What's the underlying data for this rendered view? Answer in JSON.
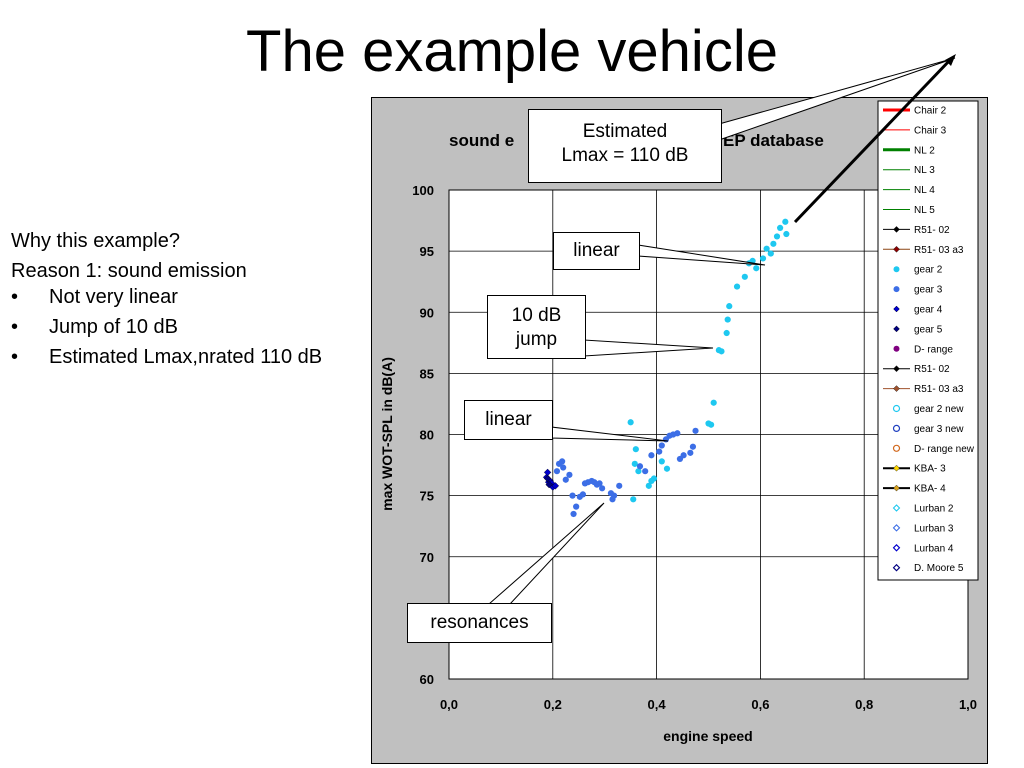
{
  "slide": {
    "title": "The example vehicle",
    "left_heading": "Why this example?",
    "left_subheading": "Reason 1: sound emission",
    "bullets": [
      "Not very linear",
      "Jump of 10 dB",
      "Estimated Lmax,nrated 110 dB"
    ]
  },
  "callouts": {
    "estimated_line1": "Estimated",
    "estimated_line2": "Lmax = 110 dB",
    "linear_upper": "linear",
    "jump_line1": "10 dB",
    "jump_line2": "jump",
    "linear_lower": "linear",
    "resonances": "resonances"
  },
  "chart_data": {
    "type": "scatter",
    "title_left": "sound e",
    "title_right": "EP database",
    "xlabel": "engine speed",
    "ylabel": "max WOT-SPL in dB(A)",
    "xlim": [
      0,
      1.0
    ],
    "ylim": [
      60,
      100
    ],
    "xticks": [
      "0,0",
      "0,2",
      "0,4",
      "0,6",
      "0,8",
      "1,0"
    ],
    "yticks": [
      "60",
      "70",
      "75",
      "80",
      "85",
      "90",
      "95",
      "100"
    ],
    "grid": true,
    "legend_position": "top-right",
    "legend": [
      {
        "name": "Chair 2",
        "kind": "line",
        "color": "#ff0000",
        "width": 3
      },
      {
        "name": "Chair 3",
        "kind": "line",
        "color": "#ff0000",
        "width": 1
      },
      {
        "name": "NL 2",
        "kind": "line",
        "color": "#008000",
        "width": 3
      },
      {
        "name": "NL 3",
        "kind": "line",
        "color": "#008000",
        "width": 1
      },
      {
        "name": "NL 4",
        "kind": "line",
        "color": "#008000",
        "width": 1
      },
      {
        "name": "NL 5",
        "kind": "line",
        "color": "#008000",
        "width": 1
      },
      {
        "name": "R51- 02",
        "kind": "linemarker",
        "color": "#000000",
        "marker": "diamond-filled",
        "mcolor": "#000000"
      },
      {
        "name": "R51- 03 a3",
        "kind": "linemarker",
        "color": "#8b4513",
        "marker": "diamond-filled",
        "mcolor": "#8b0000"
      },
      {
        "name": "gear 2",
        "kind": "marker",
        "marker": "circle-filled",
        "mcolor": "#1ec8f0"
      },
      {
        "name": "gear 3",
        "kind": "marker",
        "marker": "circle-filled",
        "mcolor": "#3c6ee6"
      },
      {
        "name": "gear 4",
        "kind": "marker",
        "marker": "diamond-filled",
        "mcolor": "#0000cd"
      },
      {
        "name": "gear 5",
        "kind": "marker",
        "marker": "diamond-filled",
        "mcolor": "#000080"
      },
      {
        "name": "D- range",
        "kind": "marker",
        "marker": "circle-filled",
        "mcolor": "#800080"
      },
      {
        "name": "R51- 02",
        "kind": "linemarker",
        "color": "#000000",
        "marker": "diamond-filled",
        "mcolor": "#000000"
      },
      {
        "name": "R51- 03 a3",
        "kind": "linemarker",
        "color": "#a0522d",
        "marker": "diamond-filled",
        "mcolor": "#a0522d"
      },
      {
        "name": "gear 2 new",
        "kind": "marker",
        "marker": "circle-open",
        "mcolor": "#1ec8f0"
      },
      {
        "name": "gear 3 new",
        "kind": "marker",
        "marker": "circle-open",
        "mcolor": "#2040c0"
      },
      {
        "name": "D- range new",
        "kind": "marker",
        "marker": "circle-open",
        "mcolor": "#d2691e"
      },
      {
        "name": "KBA- 3",
        "kind": "linemarker",
        "color": "#000000",
        "width": 2,
        "marker": "diamond-filled",
        "mcolor": "#ffd700"
      },
      {
        "name": "KBA- 4",
        "kind": "linemarker",
        "color": "#000000",
        "width": 2,
        "marker": "diamond-filled",
        "mcolor": "#daa520"
      },
      {
        "name": "Lurban 2",
        "kind": "marker",
        "marker": "diamond-open",
        "mcolor": "#1ec8f0"
      },
      {
        "name": "Lurban 3",
        "kind": "marker",
        "marker": "diamond-open",
        "mcolor": "#3c6ee6"
      },
      {
        "name": "Lurban 4",
        "kind": "marker",
        "marker": "diamond-open",
        "mcolor": "#0000cd"
      },
      {
        "name": "D. Moore 5",
        "kind": "marker",
        "marker": "diamond-open",
        "mcolor": "#000080"
      }
    ],
    "series": [
      {
        "name": "gear 2",
        "color": "#1ec8f0",
        "marker": "circle-filled",
        "points": [
          [
            0.35,
            81.0
          ],
          [
            0.355,
            74.7
          ],
          [
            0.358,
            77.6
          ],
          [
            0.36,
            78.8
          ],
          [
            0.365,
            77.0
          ],
          [
            0.385,
            75.8
          ],
          [
            0.39,
            76.2
          ],
          [
            0.395,
            76.4
          ],
          [
            0.41,
            77.8
          ],
          [
            0.42,
            77.2
          ],
          [
            0.5,
            80.9
          ],
          [
            0.505,
            80.8
          ],
          [
            0.51,
            82.6
          ],
          [
            0.52,
            86.9
          ],
          [
            0.525,
            86.8
          ],
          [
            0.535,
            88.3
          ],
          [
            0.537,
            89.4
          ],
          [
            0.54,
            90.5
          ],
          [
            0.555,
            92.1
          ],
          [
            0.57,
            92.9
          ],
          [
            0.578,
            94.0
          ],
          [
            0.585,
            94.2
          ],
          [
            0.592,
            93.6
          ],
          [
            0.605,
            94.4
          ],
          [
            0.612,
            95.2
          ],
          [
            0.62,
            94.8
          ],
          [
            0.625,
            95.6
          ],
          [
            0.632,
            96.2
          ],
          [
            0.638,
            96.9
          ],
          [
            0.648,
            97.4
          ],
          [
            0.65,
            96.4
          ]
        ]
      },
      {
        "name": "gear 3",
        "color": "#3c6ee6",
        "marker": "circle-filled",
        "points": [
          [
            0.208,
            77.0
          ],
          [
            0.212,
            77.6
          ],
          [
            0.218,
            77.8
          ],
          [
            0.22,
            77.3
          ],
          [
            0.225,
            76.3
          ],
          [
            0.232,
            76.7
          ],
          [
            0.238,
            75.0
          ],
          [
            0.24,
            73.5
          ],
          [
            0.245,
            74.1
          ],
          [
            0.252,
            74.9
          ],
          [
            0.258,
            75.1
          ],
          [
            0.262,
            76.0
          ],
          [
            0.268,
            76.1
          ],
          [
            0.275,
            76.2
          ],
          [
            0.28,
            76.1
          ],
          [
            0.285,
            75.9
          ],
          [
            0.29,
            76.0
          ],
          [
            0.295,
            75.6
          ],
          [
            0.312,
            75.2
          ],
          [
            0.315,
            74.7
          ],
          [
            0.318,
            75.0
          ],
          [
            0.328,
            75.8
          ],
          [
            0.368,
            77.4
          ],
          [
            0.378,
            77.0
          ],
          [
            0.39,
            78.3
          ],
          [
            0.405,
            78.6
          ],
          [
            0.41,
            79.1
          ],
          [
            0.418,
            79.6
          ],
          [
            0.425,
            79.9
          ],
          [
            0.432,
            80.0
          ],
          [
            0.44,
            80.1
          ],
          [
            0.445,
            78.0
          ],
          [
            0.452,
            78.3
          ],
          [
            0.465,
            78.5
          ],
          [
            0.47,
            79.0
          ],
          [
            0.475,
            80.3
          ]
        ]
      },
      {
        "name": "gear 4",
        "color": "#0000cd",
        "marker": "diamond-filled",
        "points": [
          [
            0.188,
            76.5
          ],
          [
            0.19,
            76.9
          ],
          [
            0.192,
            76.1
          ],
          [
            0.195,
            76.2
          ],
          [
            0.198,
            76.0
          ],
          [
            0.2,
            75.7
          ],
          [
            0.205,
            75.8
          ]
        ]
      },
      {
        "name": "gear 5",
        "color": "#000080",
        "marker": "diamond-filled",
        "points": [
          [
            0.19,
            76.4
          ],
          [
            0.193,
            75.9
          ]
        ]
      }
    ]
  }
}
